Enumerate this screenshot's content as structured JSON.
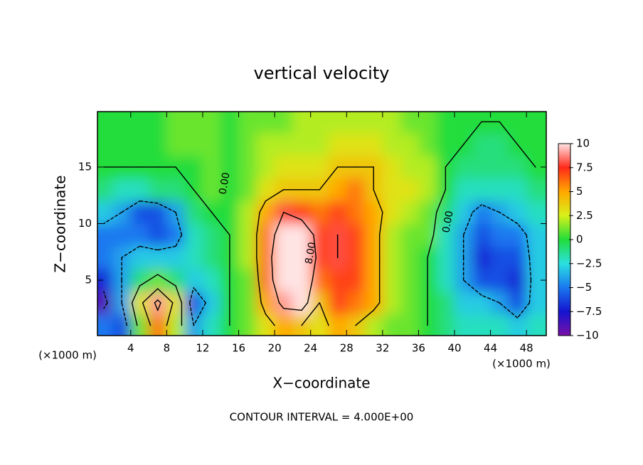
{
  "chart_data": {
    "type": "contour",
    "title": "vertical velocity",
    "x_label": "X−coordinate",
    "y_label": "Z−coordinate",
    "x_unit_left": "(×1000 m)",
    "x_unit_right": "(×1000 m)",
    "footer": "CONTOUR INTERVAL = 4.000E+00",
    "contour_interval": 4,
    "contour_labels": [
      "0.00",
      "0.00",
      "8.00"
    ],
    "xlim": [
      0.3,
      50.2
    ],
    "ylim": [
      0.1,
      19.9
    ],
    "xticks": [
      4,
      8,
      12,
      16,
      20,
      24,
      28,
      32,
      36,
      40,
      44,
      48
    ],
    "yticks": [
      5,
      10,
      15
    ],
    "x": [
      1,
      3,
      5,
      7,
      9,
      11,
      13,
      15,
      17,
      19,
      21,
      23,
      25,
      27,
      29,
      31,
      33,
      35,
      37,
      39,
      41,
      43,
      45,
      47,
      49
    ],
    "y": [
      1,
      3,
      5,
      7,
      9,
      11,
      13,
      15,
      17,
      19
    ],
    "z": [
      [
        -5,
        -6,
        1,
        6,
        2,
        -4,
        -2,
        0,
        1,
        3,
        5,
        4,
        3,
        5,
        4,
        2,
        1,
        1,
        0,
        -1,
        -2,
        -2,
        -2,
        -3,
        -2
      ],
      [
        -9,
        -4,
        3,
        9,
        3,
        -6,
        -3,
        0,
        1,
        5,
        9,
        10,
        4,
        7,
        6,
        5,
        2,
        1,
        0,
        -1,
        -3,
        -3,
        -4,
        -6,
        -3
      ],
      [
        -7,
        -4,
        -1,
        1,
        -1,
        -3,
        -2,
        0,
        1,
        6,
        11,
        11,
        6,
        7,
        7,
        5,
        2,
        1,
        0,
        -2,
        -4,
        -6,
        -6,
        -7,
        -3
      ],
      [
        -5,
        -4,
        -3,
        -3,
        -3,
        -2,
        -1,
        0,
        2,
        6,
        12,
        12,
        7,
        8,
        7,
        5,
        2,
        1,
        0,
        -2,
        -4,
        -7,
        -6,
        -6,
        -3
      ],
      [
        -5,
        -5,
        -5,
        -6,
        -5,
        -2,
        -1,
        0,
        2,
        6,
        10,
        10,
        7,
        8,
        7,
        5,
        2,
        1,
        1,
        -2,
        -4,
        -6,
        -5,
        -5,
        -3
      ],
      [
        -3,
        -4,
        -6,
        -6,
        -4,
        -1,
        0,
        0,
        2,
        5,
        8,
        7,
        6,
        7,
        6,
        5,
        3,
        2,
        1,
        -1,
        -3,
        -5,
        -4,
        -3,
        -2
      ],
      [
        -1,
        -2,
        -2,
        -1,
        -1,
        0,
        1,
        0,
        1,
        3,
        4,
        4,
        4,
        5,
        6,
        4,
        3,
        3,
        2,
        0,
        -2,
        -2,
        -2,
        -2,
        -1
      ],
      [
        0,
        0,
        0,
        0,
        0,
        0,
        1,
        0,
        1,
        2,
        3,
        3,
        3,
        4,
        4,
        4,
        3,
        2,
        2,
        0,
        -1,
        -1,
        -1,
        -1,
        0
      ],
      [
        0,
        0,
        0,
        0,
        1,
        1,
        1,
        0,
        1,
        2,
        2,
        2,
        2,
        3,
        3,
        3,
        2,
        2,
        1,
        0,
        0,
        -1,
        -1,
        0,
        0
      ],
      [
        0,
        0,
        0,
        0,
        1,
        1,
        1,
        0,
        1,
        1,
        1,
        2,
        2,
        2,
        2,
        2,
        2,
        1,
        1,
        0,
        0,
        0,
        0,
        0,
        0
      ]
    ],
    "colorbar": {
      "ticks": [
        10,
        7.5,
        5,
        2.5,
        0,
        {
          "value": -2.5,
          "label": "−2.5"
        },
        {
          "value": -5,
          "label": "−5"
        },
        {
          "value": -7.5,
          "label": "−7.5"
        },
        {
          "value": -10,
          "label": "−10"
        }
      ],
      "colors": [
        "#ffe4e4",
        "#ff2a1a",
        "#ffa800",
        "#d8f01a",
        "#22dd3a",
        "#2ae0e0",
        "#1a78f0",
        "#1414d0",
        "#7a10a8"
      ]
    }
  }
}
